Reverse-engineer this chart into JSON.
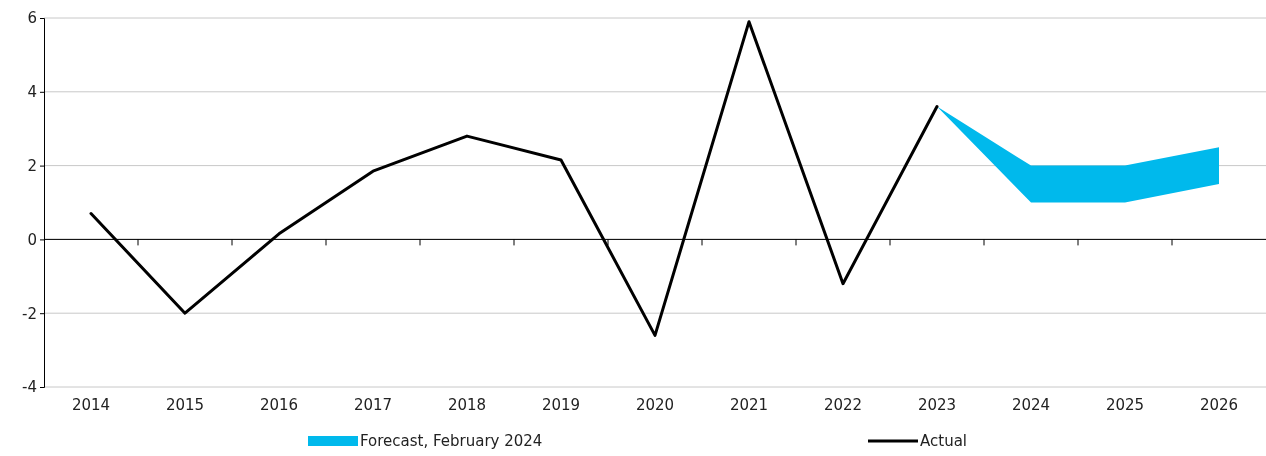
{
  "chart_data": {
    "type": "line",
    "categories": [
      "2014",
      "2015",
      "2016",
      "2017",
      "2018",
      "2019",
      "2020",
      "2021",
      "2022",
      "2023",
      "2024",
      "2025",
      "2026"
    ],
    "series": [
      {
        "name": "Forecast, February 2024",
        "type": "area",
        "color": "#00b9ec",
        "lower": [
          null,
          null,
          null,
          null,
          null,
          null,
          null,
          null,
          null,
          3.6,
          1.0,
          1.0,
          1.5
        ],
        "upper": [
          null,
          null,
          null,
          null,
          null,
          null,
          null,
          null,
          null,
          3.6,
          2.0,
          2.0,
          2.5
        ],
        "values": [
          null,
          null,
          null,
          null,
          null,
          null,
          null,
          null,
          null,
          null,
          null,
          null,
          null
        ]
      },
      {
        "name": "Actual",
        "color": "#000000",
        "values": [
          0.7,
          -2.0,
          0.15,
          1.85,
          2.8,
          2.15,
          -2.6,
          5.9,
          -1.2,
          3.6,
          null,
          null,
          null
        ]
      }
    ],
    "ylim": [
      -4,
      6
    ],
    "yticks": [
      -4,
      -2,
      0,
      2,
      4,
      6
    ],
    "grid": "y",
    "legend": "bottom",
    "line_style": "solid",
    "marker": "none"
  }
}
